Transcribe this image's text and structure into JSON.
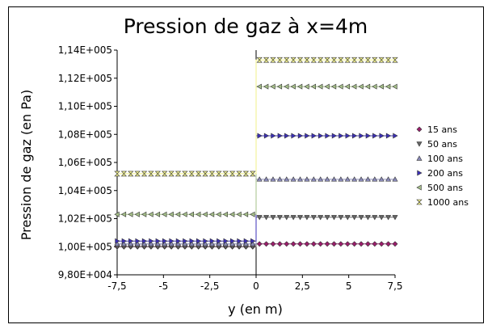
{
  "chart_data": {
    "type": "scatter",
    "title": "Pression de gaz à x=4m",
    "xlabel": "y (en m)",
    "ylabel": "Pression de gaz (en Pa)",
    "xlim": [
      -7.5,
      7.5
    ],
    "ylim": [
      98000,
      114000
    ],
    "x_ticks": [
      "-7,5",
      "-5",
      "-2,5",
      "0",
      "2,5",
      "5",
      "7,5"
    ],
    "x_tick_values": [
      -7.5,
      -5,
      -2.5,
      0,
      2.5,
      5,
      7.5
    ],
    "y_ticks": [
      "9,80E+004",
      "1,00E+005",
      "1,02E+005",
      "1,04E+005",
      "1,06E+005",
      "1,08E+005",
      "1,10E+005",
      "1,12E+005",
      "1,14E+005"
    ],
    "y_tick_values": [
      98000,
      100000,
      102000,
      104000,
      106000,
      108000,
      110000,
      112000,
      114000
    ],
    "grid": false,
    "legend_position": "right",
    "series": [
      {
        "name": "15 ans",
        "marker": "diamond",
        "color": "#9b1d6b",
        "left_value": 100000,
        "right_value": 100200
      },
      {
        "name": "50 ans",
        "marker": "triangle-down",
        "color": "#666666",
        "left_value": 100000,
        "right_value": 102100
      },
      {
        "name": "100 ans",
        "marker": "triangle-up",
        "color": "#8a8ab8",
        "left_value": 100200,
        "right_value": 104800
      },
      {
        "name": "200 ans",
        "marker": "triangle-right",
        "color": "#3b2fb8",
        "left_value": 100400,
        "right_value": 107900
      },
      {
        "name": "500 ans",
        "marker": "triangle-left",
        "color": "#a6c08a",
        "left_value": 102300,
        "right_value": 111400
      },
      {
        "name": "1000 ans",
        "marker": "hourglass",
        "color": "#f2f28a",
        "left_value": 105200,
        "right_value": 113300
      }
    ]
  }
}
